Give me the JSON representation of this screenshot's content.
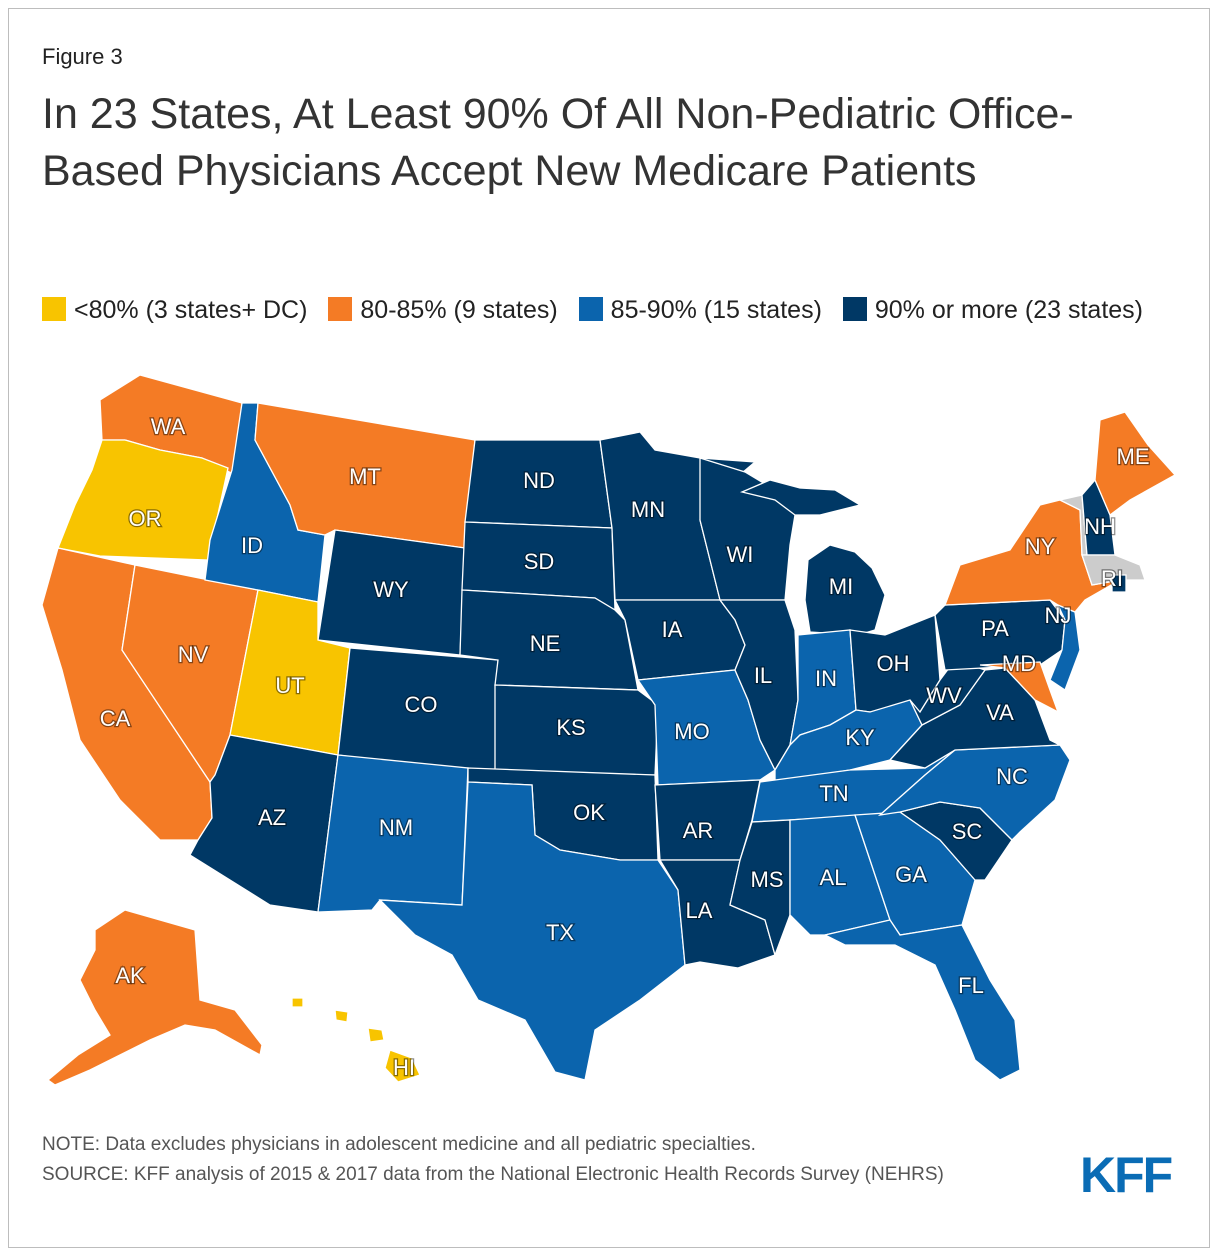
{
  "figure_label": "Figure 3",
  "title": "In 23 States, At Least 90% Of All Non-Pediatric Office-Based Physicians Accept New Medicare Patients",
  "colors": {
    "lt80": "#f8c400",
    "c80_85": "#f47b25",
    "c85_90": "#0b64ad",
    "c90plus": "#003865"
  },
  "legend": [
    {
      "label": "<80% (3 states+ DC)",
      "color": "#f8c400"
    },
    {
      "label": "80-85% (9 states)",
      "color": "#f47b25"
    },
    {
      "label": "85-90% (15 states)",
      "color": "#0b64ad"
    },
    {
      "label": "90% or more (23 states)",
      "color": "#003865"
    }
  ],
  "states": {
    "WA": "80-85%",
    "OR": "<80%",
    "CA": "80-85%",
    "NV": "80-85%",
    "ID": "85-90%",
    "MT": "80-85%",
    "WY": "90% or more",
    "UT": "<80%",
    "AZ": "90% or more",
    "CO": "90% or more",
    "NM": "85-90%",
    "ND": "90% or more",
    "SD": "90% or more",
    "NE": "90% or more",
    "KS": "90% or more",
    "OK": "90% or more",
    "TX": "85-90%",
    "MN": "90% or more",
    "IA": "90% or more",
    "MO": "85-90%",
    "AR": "90% or more",
    "LA": "90% or more",
    "WI": "90% or more",
    "IL": "90% or more",
    "MI": "90% or more",
    "IN": "85-90%",
    "OH": "90% or more",
    "KY": "85-90%",
    "TN": "85-90%",
    "MS": "90% or more",
    "AL": "85-90%",
    "GA": "85-90%",
    "FL": "85-90%",
    "SC": "90% or more",
    "NC": "85-90%",
    "VA": "90% or more",
    "WV": "90% or more",
    "PA": "90% or more",
    "NY": "80-85%",
    "NJ": "85-90%",
    "MD": "80-85%",
    "ME": "80-85%",
    "NH": "90% or more",
    "RI": "90% or more",
    "AK": "80-85%",
    "HI": "<80%"
  },
  "note": "NOTE: Data excludes physicians in adolescent medicine and all pediatric specialties.",
  "source": "SOURCE: KFF analysis of 2015 & 2017 data from the National Electronic Health Records Survey (NEHRS)",
  "logo": "KFF"
}
